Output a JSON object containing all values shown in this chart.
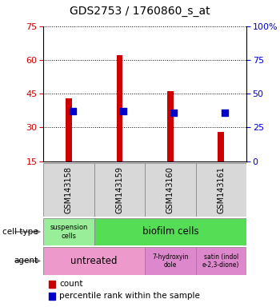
{
  "title": "GDS2753 / 1760860_s_at",
  "samples": [
    "GSM143158",
    "GSM143159",
    "GSM143160",
    "GSM143161"
  ],
  "counts": [
    43,
    62,
    46,
    28
  ],
  "percentile_ranks": [
    37,
    37,
    36,
    36
  ],
  "ylim_left": [
    15,
    75
  ],
  "ylim_right": [
    0,
    100
  ],
  "yticks_left": [
    15,
    30,
    45,
    60,
    75
  ],
  "yticks_right": [
    0,
    25,
    50,
    75,
    100
  ],
  "ytick_right_labels": [
    "0",
    "25",
    "50",
    "75",
    "100%"
  ],
  "bar_color": "#cc0000",
  "dot_color": "#0000cc",
  "tick_color_left": "#cc0000",
  "tick_color_right": "#0000cc",
  "bar_width": 0.12,
  "dot_size": 40,
  "suspension_color": "#99ee99",
  "biofilm_color": "#55dd55",
  "untreated_color": "#ee99cc",
  "agent2_color": "#dd88cc",
  "agent3_color": "#dd88cc",
  "sample_box_color": "#d8d8d8"
}
